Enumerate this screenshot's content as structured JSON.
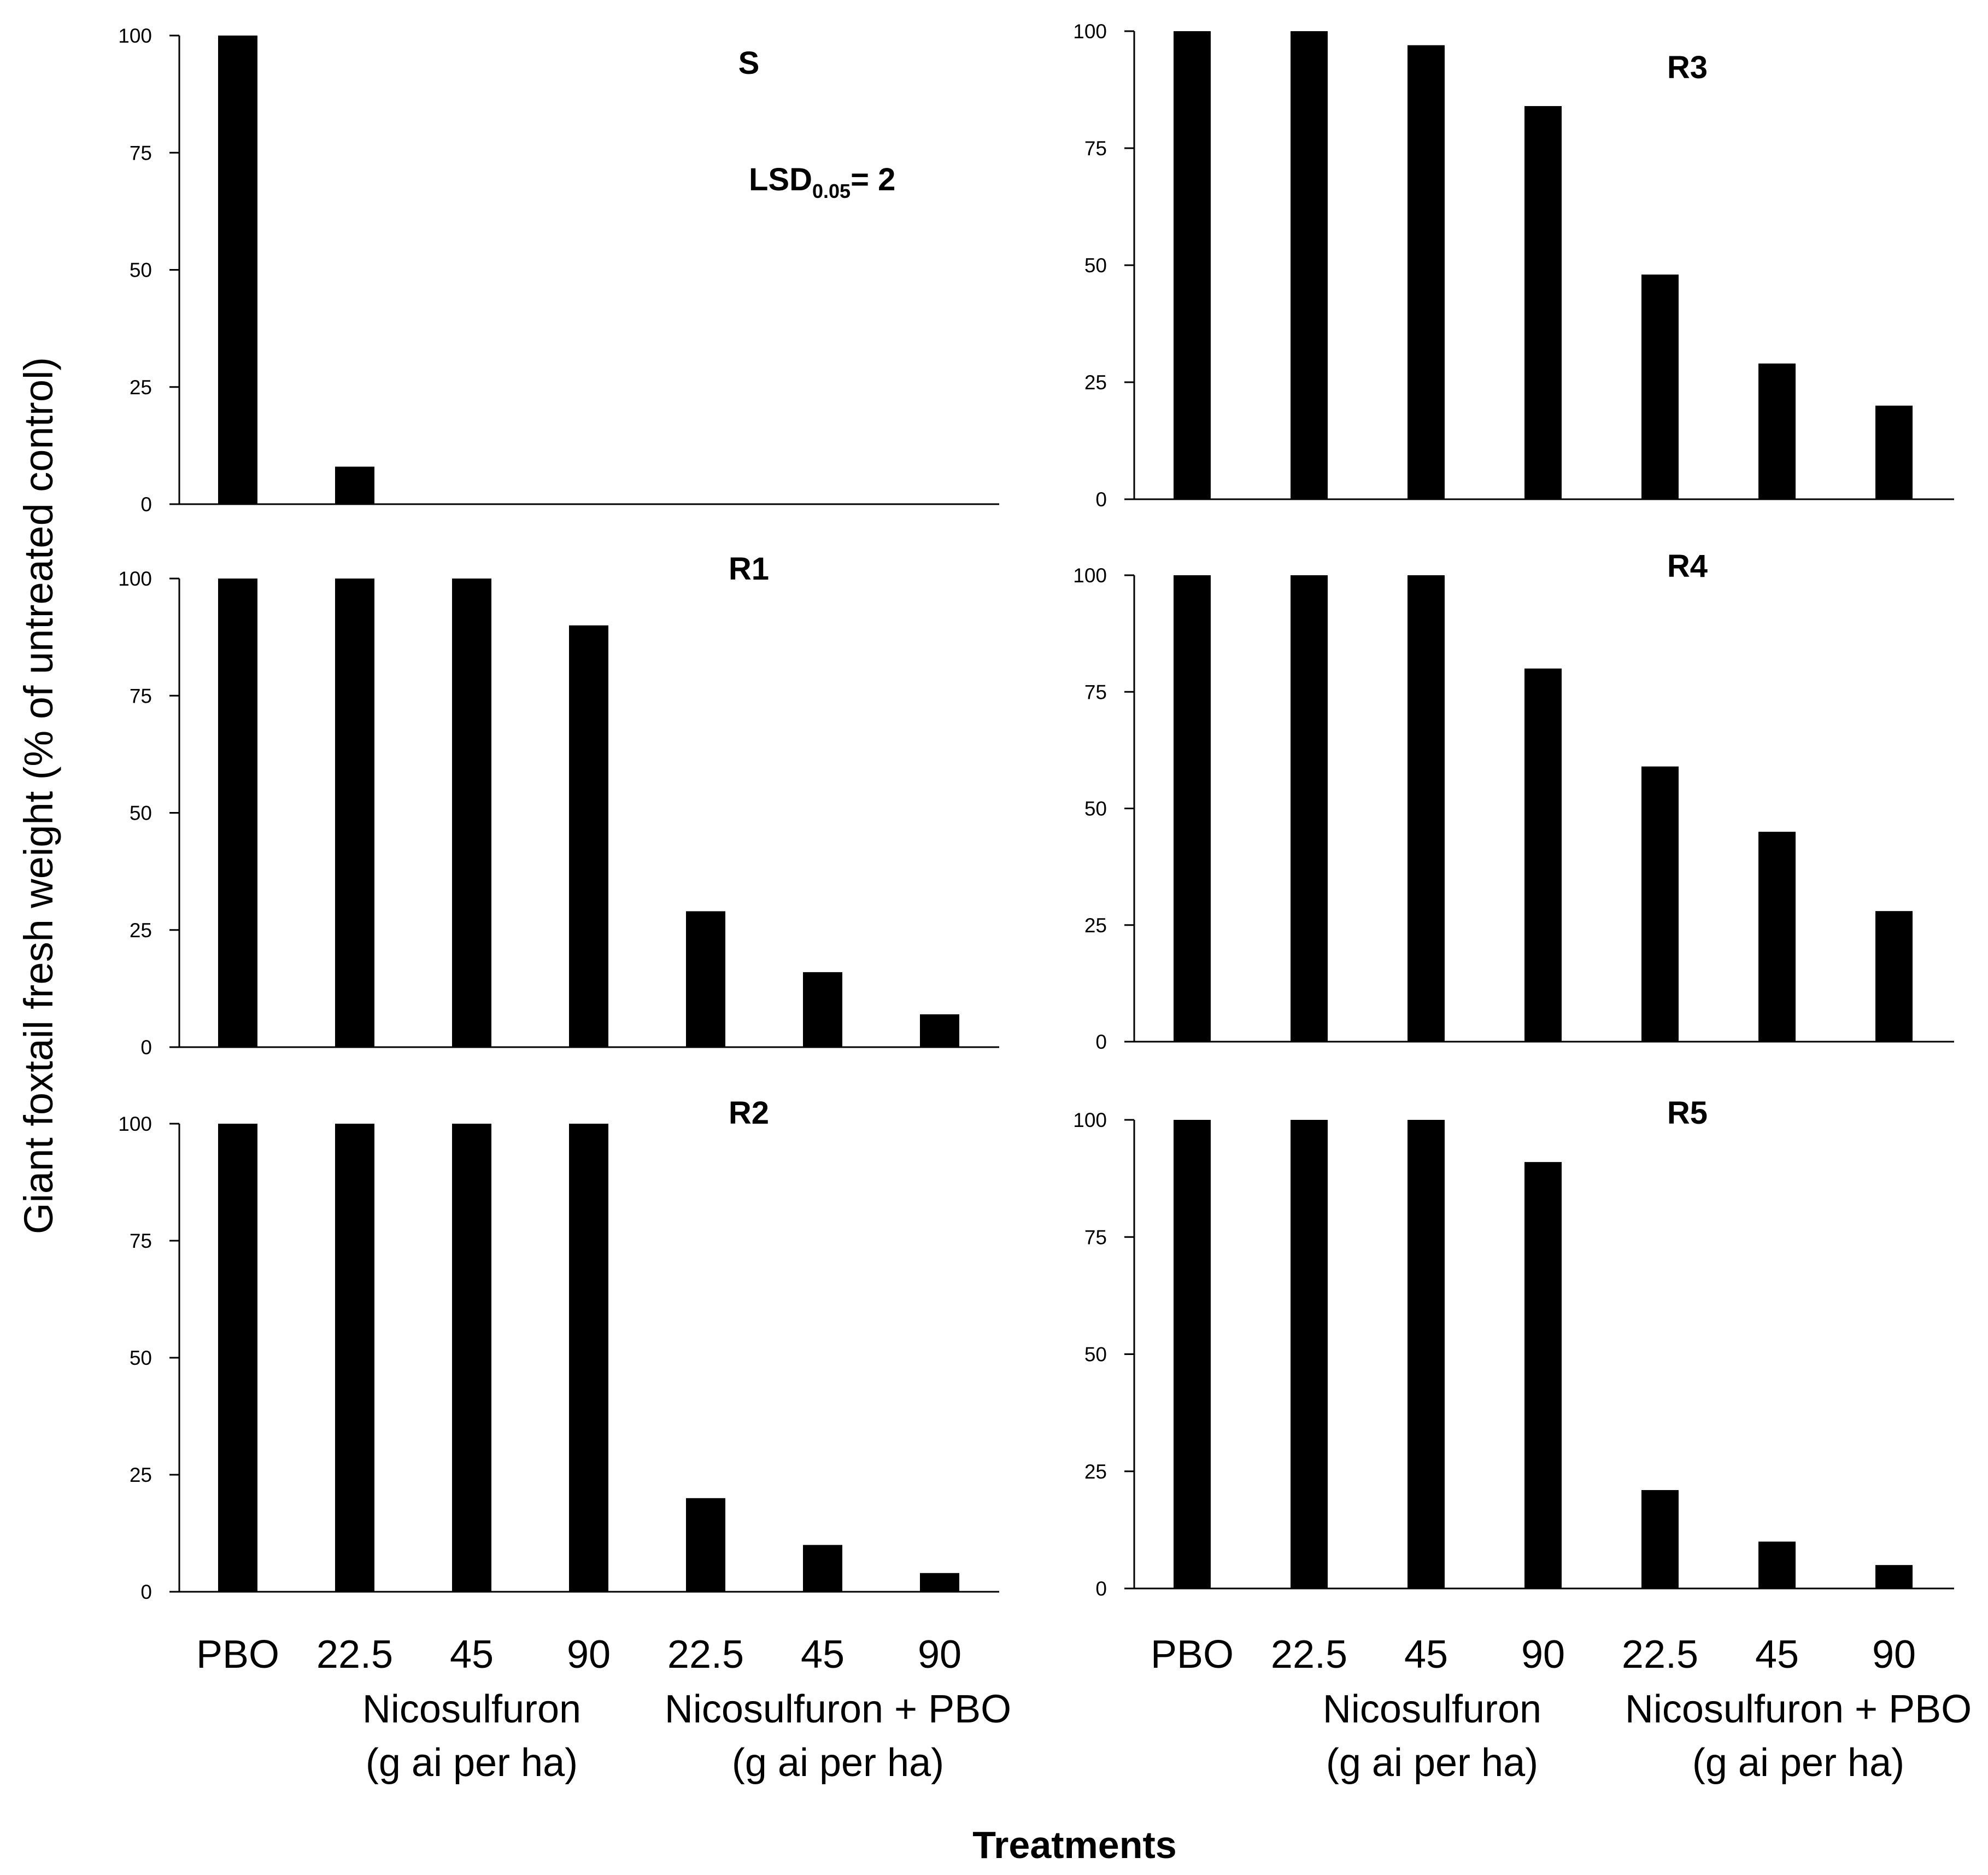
{
  "figure": {
    "ylabel": "Giant foxtail fresh weight (% of untreated control)",
    "xlabel": "Treatments",
    "lsd": {
      "prefix": "LSD",
      "subscript": "0.05",
      "suffix": "= 2"
    }
  },
  "chart_data": [
    {
      "type": "bar",
      "title": "S",
      "categories": [
        "PBO",
        "22.5",
        "45",
        "90",
        "22.5",
        "45",
        "90"
      ],
      "values": [
        100,
        8,
        0,
        0,
        0,
        0,
        0
      ],
      "ylim": [
        0,
        100
      ],
      "yticks": [
        0,
        25,
        50,
        75,
        100
      ]
    },
    {
      "type": "bar",
      "title": "R3",
      "categories": [
        "PBO",
        "22.5",
        "45",
        "90",
        "22.5",
        "45",
        "90"
      ],
      "values": [
        100,
        100,
        97,
        84,
        48,
        29,
        20
      ],
      "ylim": [
        0,
        100
      ],
      "yticks": [
        0,
        25,
        50,
        75,
        100
      ]
    },
    {
      "type": "bar",
      "title": "R1",
      "categories": [
        "PBO",
        "22.5",
        "45",
        "90",
        "22.5",
        "45",
        "90"
      ],
      "values": [
        100,
        100,
        100,
        90,
        29,
        16,
        7
      ],
      "ylim": [
        0,
        100
      ],
      "yticks": [
        0,
        25,
        50,
        75,
        100
      ]
    },
    {
      "type": "bar",
      "title": "R4",
      "categories": [
        "PBO",
        "22.5",
        "45",
        "90",
        "22.5",
        "45",
        "90"
      ],
      "values": [
        100,
        100,
        100,
        80,
        59,
        45,
        28
      ],
      "ylim": [
        0,
        100
      ],
      "yticks": [
        0,
        25,
        50,
        75,
        100
      ]
    },
    {
      "type": "bar",
      "title": "R2",
      "categories": [
        "PBO",
        "22.5",
        "45",
        "90",
        "22.5",
        "45",
        "90"
      ],
      "values": [
        100,
        100,
        100,
        100,
        20,
        10,
        4
      ],
      "ylim": [
        0,
        100
      ],
      "yticks": [
        0,
        25,
        50,
        75,
        100
      ]
    },
    {
      "type": "bar",
      "title": "R5",
      "categories": [
        "PBO",
        "22.5",
        "45",
        "90",
        "22.5",
        "45",
        "90"
      ],
      "values": [
        100,
        100,
        100,
        91,
        21,
        10,
        5
      ],
      "ylim": [
        0,
        100
      ],
      "yticks": [
        0,
        25,
        50,
        75,
        100
      ]
    }
  ],
  "xgroups": [
    {
      "name": "Nicosulfuron",
      "unit": "(g ai per ha)"
    },
    {
      "name": "Nicosulfuron + PBO",
      "unit": "(g ai per ha)"
    }
  ]
}
